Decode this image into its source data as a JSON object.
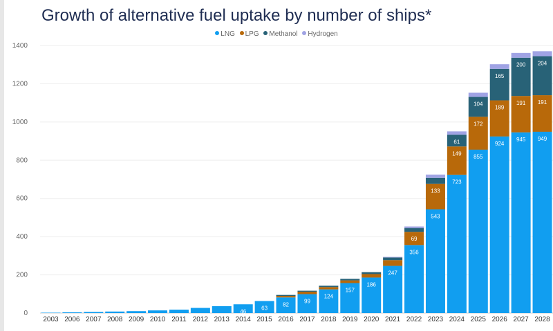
{
  "title": "Growth of alternative fuel uptake by number of ships*",
  "legend": [
    {
      "name": "LNG",
      "color": "#119ef0"
    },
    {
      "name": "LPG",
      "color": "#b8690a"
    },
    {
      "name": "Methanol",
      "color": "#286277"
    },
    {
      "name": "Hydrogen",
      "color": "#a0a3e4"
    }
  ],
  "chart_data": {
    "type": "bar",
    "stacked": true,
    "title": "Growth of alternative fuel uptake by number of ships*",
    "xlabel": "",
    "ylabel": "",
    "ylim": [
      0,
      1400
    ],
    "yticks": [
      0,
      200,
      400,
      600,
      800,
      1000,
      1200,
      1400
    ],
    "grid": true,
    "legend_position": "top-center",
    "categories": [
      "2003",
      "2006",
      "2007",
      "2008",
      "2009",
      "2010",
      "2011",
      "2012",
      "2013",
      "2014",
      "2015",
      "2016",
      "2017",
      "2018",
      "2019",
      "2020",
      "2021",
      "2022",
      "2023",
      "2024",
      "2025",
      "2026",
      "2027",
      "2028"
    ],
    "series": [
      {
        "name": "LNG",
        "color": "#119ef0",
        "values": [
          2,
          4,
          6,
          8,
          10,
          14,
          18,
          27,
          36,
          46,
          63,
          82,
          99,
          124,
          157,
          186,
          247,
          356,
          543,
          723,
          855,
          924,
          945,
          949
        ]
      },
      {
        "name": "LPG",
        "color": "#b8690a",
        "values": [
          0,
          0,
          0,
          0,
          0,
          0,
          0,
          0,
          0,
          0,
          0,
          8,
          13,
          12,
          14,
          18,
          30,
          69,
          133,
          149,
          172,
          189,
          191,
          191
        ]
      },
      {
        "name": "Methanol",
        "color": "#286277",
        "values": [
          0,
          0,
          0,
          0,
          0,
          0,
          0,
          0,
          0,
          0,
          0,
          5,
          5,
          7,
          8,
          10,
          14,
          20,
          32,
          61,
          104,
          165,
          200,
          204
        ]
      },
      {
        "name": "Hydrogen",
        "color": "#a0a3e4",
        "values": [
          0,
          0,
          0,
          0,
          0,
          0,
          0,
          0,
          0,
          0,
          0,
          0,
          0,
          0,
          0,
          0,
          3,
          8,
          16,
          18,
          22,
          24,
          25,
          26
        ]
      }
    ],
    "data_labels": {
      "LNG": [
        null,
        null,
        null,
        null,
        null,
        null,
        null,
        null,
        null,
        46,
        63,
        82,
        99,
        124,
        157,
        186,
        247,
        356,
        543,
        723,
        855,
        924,
        945,
        949
      ],
      "LPG": [
        null,
        null,
        null,
        null,
        null,
        null,
        null,
        null,
        null,
        null,
        null,
        null,
        null,
        null,
        null,
        null,
        null,
        69,
        133,
        149,
        172,
        189,
        191,
        191
      ],
      "Methanol": [
        null,
        null,
        null,
        null,
        null,
        null,
        null,
        null,
        null,
        null,
        null,
        null,
        null,
        null,
        null,
        null,
        null,
        null,
        null,
        61,
        104,
        165,
        200,
        204
      ],
      "Hydrogen": [
        null,
        null,
        null,
        null,
        null,
        null,
        null,
        null,
        null,
        null,
        null,
        null,
        null,
        null,
        null,
        null,
        null,
        null,
        null,
        null,
        null,
        null,
        null,
        null
      ]
    }
  }
}
